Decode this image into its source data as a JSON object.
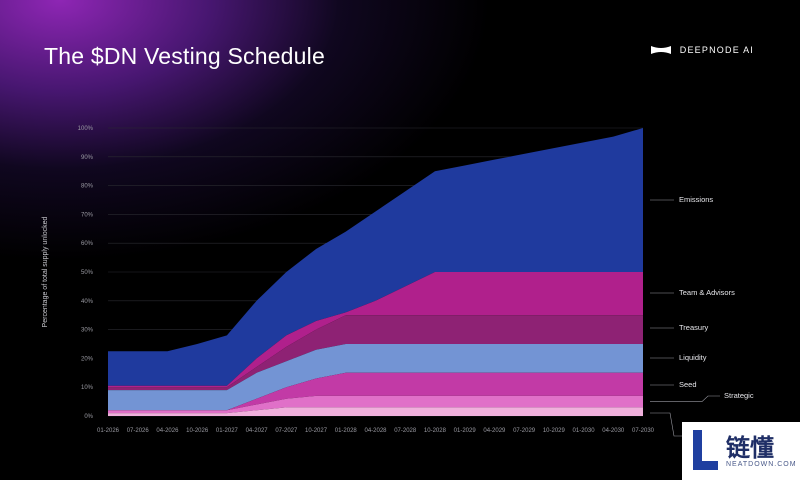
{
  "header": {
    "title": "The $DN Vesting Schedule",
    "brand": "DEEPNODE AI"
  },
  "colors": {
    "emissions": "#1f3a9e",
    "team_advisors": "#b0208c",
    "treasury": "#8e2274",
    "liquidity": "#7394d4",
    "seed": "#c23aa6",
    "strategic": "#e070c8",
    "base": "#f0b0dc",
    "gridline": "#2a2a30",
    "background": "#000000"
  },
  "chart_data": {
    "type": "area",
    "stacked": true,
    "ylabel": "Percentage of total supply unlocked",
    "xlabel": "",
    "ylim": [
      0,
      100
    ],
    "y_ticks": [
      "0%",
      "10%",
      "20%",
      "30%",
      "40%",
      "50%",
      "60%",
      "70%",
      "80%",
      "90%",
      "100%"
    ],
    "x_ticks": [
      "01-2026",
      "07-2026",
      "04-2026",
      "10-2026",
      "01-2027",
      "04-2027",
      "07-2027",
      "10-2027",
      "01-2028",
      "04-2028",
      "07-2028",
      "10-2028",
      "01-2029",
      "04-2029",
      "07-2029",
      "10-2029",
      "01-2030",
      "04-2030",
      "07-2030"
    ],
    "series_top_values": [
      {
        "name": "Emissions",
        "color_key": "emissions",
        "values": [
          22.5,
          22.5,
          22.5,
          25,
          28,
          40,
          50,
          58,
          64,
          71,
          78,
          85,
          87,
          89,
          91,
          93,
          95,
          97,
          100
        ]
      },
      {
        "name": "Team & Advisors",
        "color_key": "team_advisors",
        "values": [
          10.5,
          10.5,
          10.5,
          10.5,
          10.5,
          20,
          28,
          33,
          36,
          40,
          45,
          50,
          50,
          50,
          50,
          50,
          50,
          50,
          50
        ]
      },
      {
        "name": "Treasury",
        "color_key": "treasury",
        "values": [
          10,
          10,
          10,
          10,
          10,
          17,
          24,
          30,
          35,
          35,
          35,
          35,
          35,
          35,
          35,
          35,
          35,
          35,
          35
        ]
      },
      {
        "name": "Liquidity",
        "color_key": "liquidity",
        "values": [
          9,
          9,
          9,
          9,
          9,
          15,
          19,
          23,
          25,
          25,
          25,
          25,
          25,
          25,
          25,
          25,
          25,
          25,
          25
        ]
      },
      {
        "name": "Seed",
        "color_key": "seed",
        "values": [
          2,
          2,
          2,
          2,
          2,
          6,
          10,
          13,
          15,
          15,
          15,
          15,
          15,
          15,
          15,
          15,
          15,
          15,
          15
        ]
      },
      {
        "name": "Strategic",
        "color_key": "strategic",
        "values": [
          2,
          2,
          2,
          2,
          2,
          4,
          6,
          7,
          7,
          7,
          7,
          7,
          7,
          7,
          7,
          7,
          7,
          7,
          7
        ]
      },
      {
        "name": "",
        "color_key": "base",
        "values": [
          1,
          1,
          1,
          1,
          1,
          2,
          3,
          3,
          3,
          3,
          3,
          3,
          3,
          3,
          3,
          3,
          3,
          3,
          3
        ]
      }
    ],
    "legend_placement": "right",
    "grid": true
  },
  "watermark": {
    "cn": "链懂",
    "en": "NEATDOWN.COM"
  }
}
